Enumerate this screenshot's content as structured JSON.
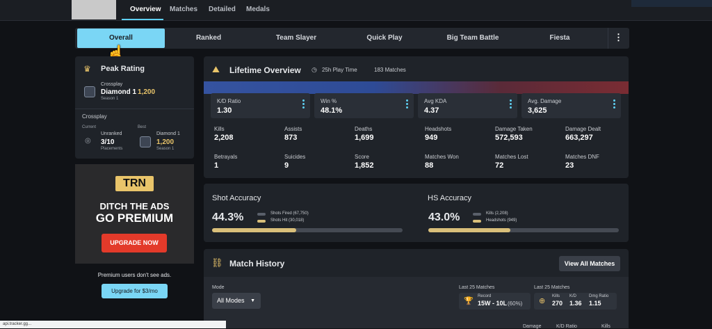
{
  "nav": {
    "tabs": [
      "Overview",
      "Matches",
      "Detailed",
      "Medals"
    ],
    "active": "Overview"
  },
  "modes": {
    "items": [
      "Overall",
      "Ranked",
      "Team Slayer",
      "Quick Play",
      "Big Team Battle",
      "Fiesta"
    ],
    "active": "Overall",
    "more_label": "⋮"
  },
  "peak": {
    "title": "Peak Rating",
    "playlist": "Crossplay",
    "rank": "Diamond 1",
    "rating": "1,200",
    "season": "Season 1"
  },
  "crossplay": {
    "title": "Crossplay",
    "current_label": "Current",
    "current_rank": "Unranked",
    "current_value": "3/10",
    "current_sub": "Placements",
    "best_label": "Best",
    "best_rank": "Diamond 1",
    "best_value": "1,200",
    "best_sub": "Season 1"
  },
  "ad": {
    "logo": "TRN",
    "line1": "DITCH THE ADS",
    "line2": "GO PREMIUM",
    "cta": "UPGRADE NOW",
    "note": "Premium users don't see ads.",
    "upgrade": "Upgrade for $3/mo"
  },
  "overview": {
    "title": "Lifetime Overview",
    "playtime": "25h Play Time",
    "matches": "183 Matches",
    "cards": [
      {
        "label": "K/D Ratio",
        "value": "1.30"
      },
      {
        "label": "Win %",
        "value": "48.1%"
      },
      {
        "label": "Avg KDA",
        "value": "4.37"
      },
      {
        "label": "Avg. Damage",
        "value": "3,625"
      }
    ],
    "stats": [
      {
        "label": "Kills",
        "value": "2,208"
      },
      {
        "label": "Assists",
        "value": "873"
      },
      {
        "label": "Deaths",
        "value": "1,699"
      },
      {
        "label": "Headshots",
        "value": "949"
      },
      {
        "label": "Damage Taken",
        "value": "572,593"
      },
      {
        "label": "Damage Dealt",
        "value": "663,297"
      },
      {
        "label": "Betrayals",
        "value": "1"
      },
      {
        "label": "Suicides",
        "value": "9"
      },
      {
        "label": "Score",
        "value": "1,852"
      },
      {
        "label": "Matches Won",
        "value": "88"
      },
      {
        "label": "Matches Lost",
        "value": "72"
      },
      {
        "label": "Matches DNF",
        "value": "23"
      }
    ]
  },
  "shot_accuracy": {
    "title": "Shot Accuracy",
    "value": "44.3%",
    "fraction": 0.443,
    "legend1": "Shots Fired (67,750)",
    "legend2": "Shots Hit (30,018)"
  },
  "hs_accuracy": {
    "title": "HS Accuracy",
    "value": "43.0%",
    "fraction": 0.43,
    "legend1": "Kills (2,208)",
    "legend2": "Headshots (949)"
  },
  "history": {
    "title": "Match History",
    "view_all": "View All Matches",
    "mode_label": "Mode",
    "mode_value": "All Modes",
    "last25_a": "Last 25 Matches",
    "record_label": "Record",
    "record_value": "15W - 10L",
    "record_pct": "(60%)",
    "last25_b": "Last 25 Matches",
    "kills_label": "Kills",
    "kills_value": "270",
    "kd_label": "K/D",
    "kd_value": "1.36",
    "dmg_label": "Dmg Ratio",
    "dmg_value": "1.15",
    "col_damage": "Damage",
    "col_kd": "K/D Ratio",
    "col_kills": "Kills"
  },
  "status_url": "api.tracker.gg..."
}
